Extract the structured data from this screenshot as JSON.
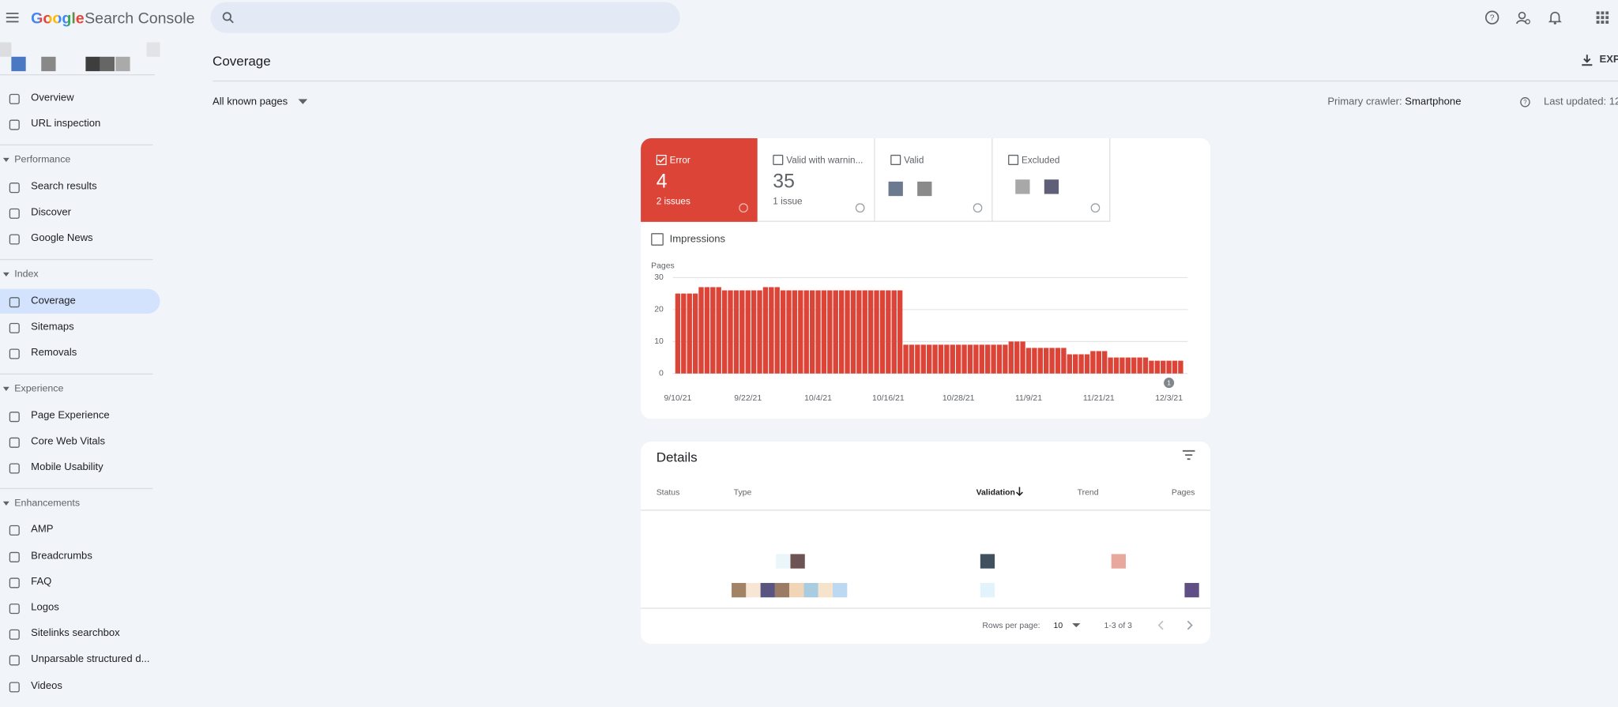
{
  "header": {
    "brand": "Google",
    "product": "Search Console"
  },
  "sidebar": {
    "top": [
      "Overview",
      "URL inspection"
    ],
    "sections": [
      {
        "title": "Performance",
        "items": [
          "Search results",
          "Discover",
          "Google News"
        ]
      },
      {
        "title": "Index",
        "items": [
          "Coverage",
          "Sitemaps",
          "Removals"
        ]
      },
      {
        "title": "Experience",
        "items": [
          "Page Experience",
          "Core Web Vitals",
          "Mobile Usability"
        ]
      },
      {
        "title": "Enhancements",
        "items": [
          "AMP",
          "Breadcrumbs",
          "FAQ",
          "Logos",
          "Sitelinks searchbox",
          "Unparsable structured d...",
          "Videos"
        ]
      }
    ]
  },
  "page": {
    "title": "Coverage",
    "export": "EXP",
    "filter": "All known pages",
    "crawler_label": "Primary crawler:",
    "crawler_value": "Smartphone",
    "last_updated": "Last updated: 12/"
  },
  "status_tiles": [
    {
      "label": "Error",
      "value": 4,
      "detail": "2 issues"
    },
    {
      "label": "Valid with warnin...",
      "value": 35,
      "detail": "1 issue"
    },
    {
      "label": "Valid"
    },
    {
      "label": "Excluded"
    }
  ],
  "impressions_label": "Impressions",
  "chart_data": {
    "type": "bar",
    "y_label": "Pages",
    "color": "#db4437",
    "categories": [
      "9/10/21",
      null,
      null,
      null,
      null,
      null,
      null,
      null,
      null,
      null,
      null,
      null,
      "9/22/21",
      null,
      null,
      null,
      null,
      null,
      null,
      null,
      null,
      null,
      null,
      null,
      "10/4/21",
      null,
      null,
      null,
      null,
      null,
      null,
      null,
      null,
      null,
      null,
      null,
      "10/16/21",
      null,
      null,
      null,
      null,
      null,
      null,
      null,
      null,
      null,
      null,
      null,
      "10/28/21",
      null,
      null,
      null,
      null,
      null,
      null,
      null,
      null,
      null,
      null,
      null,
      "11/9/21",
      null,
      null,
      null,
      null,
      null,
      null,
      null,
      null,
      null,
      null,
      null,
      "11/21/21",
      null,
      null,
      null,
      null,
      null,
      null,
      null,
      null,
      null,
      null,
      null,
      "12/3/21",
      null,
      null
    ],
    "values": [
      25,
      25,
      25,
      25,
      27,
      27,
      27,
      27,
      26,
      26,
      26,
      26,
      26,
      26,
      26,
      27,
      27,
      27,
      26,
      26,
      26,
      26,
      26,
      26,
      26,
      26,
      26,
      26,
      26,
      26,
      26,
      26,
      26,
      26,
      26,
      26,
      26,
      26,
      26,
      9,
      9,
      9,
      9,
      9,
      9,
      9,
      9,
      9,
      9,
      9,
      9,
      9,
      9,
      9,
      9,
      9,
      9,
      10,
      10,
      10,
      8,
      8,
      8,
      8,
      8,
      8,
      8,
      6,
      6,
      6,
      6,
      7,
      7,
      7,
      5,
      5,
      5,
      5,
      5,
      5,
      5,
      4,
      4,
      4,
      4,
      4,
      4
    ],
    "ylim": [
      0,
      30
    ],
    "yticks": [
      0,
      10,
      20,
      30
    ],
    "grid": true,
    "annotations": [
      {
        "text": "1",
        "x": "12/3/21"
      }
    ]
  },
  "details": {
    "title": "Details",
    "columns": [
      "Status",
      "Type",
      "Validation",
      "Trend",
      "Pages"
    ],
    "rows_per_page_label": "Rows per page:",
    "rows_per_page": 10,
    "range": "1-3 of 3"
  }
}
